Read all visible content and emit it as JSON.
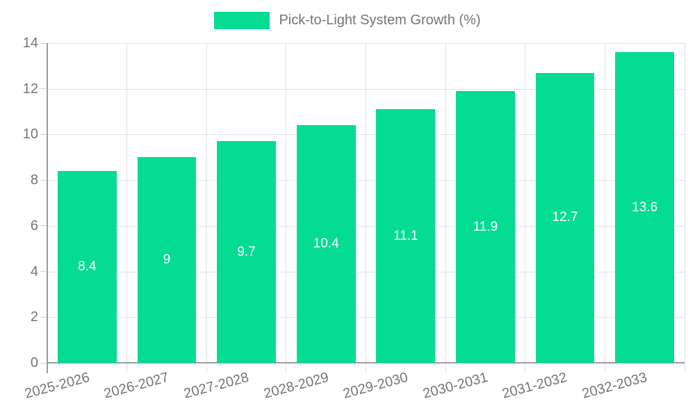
{
  "chart_data": {
    "type": "bar",
    "title": "Pick-to-Light System Growth (%)",
    "categories": [
      "2025-2026",
      "2026-2027",
      "2027-2028",
      "2028-2029",
      "2029-2030",
      "2030-2031",
      "2031-2032",
      "2032-2033"
    ],
    "values": [
      8.4,
      9,
      9.7,
      10.4,
      11.1,
      11.9,
      12.7,
      13.6
    ],
    "value_labels": [
      "8.4",
      "9",
      "9.7",
      "10.4",
      "11.1",
      "11.9",
      "12.7",
      "13.6"
    ],
    "xlabel": "",
    "ylabel": "",
    "ylim": [
      0,
      14
    ],
    "yticks": [
      0,
      2,
      4,
      6,
      8,
      10,
      12,
      14
    ],
    "grid": true,
    "legend_position": "top-center",
    "bar_color": "#05DC93",
    "bar_label_color": "#ffffff",
    "axis_text_color": "#757575",
    "grid_color": "#e2e2e2",
    "axis_line_color": "#9b9b9b"
  }
}
